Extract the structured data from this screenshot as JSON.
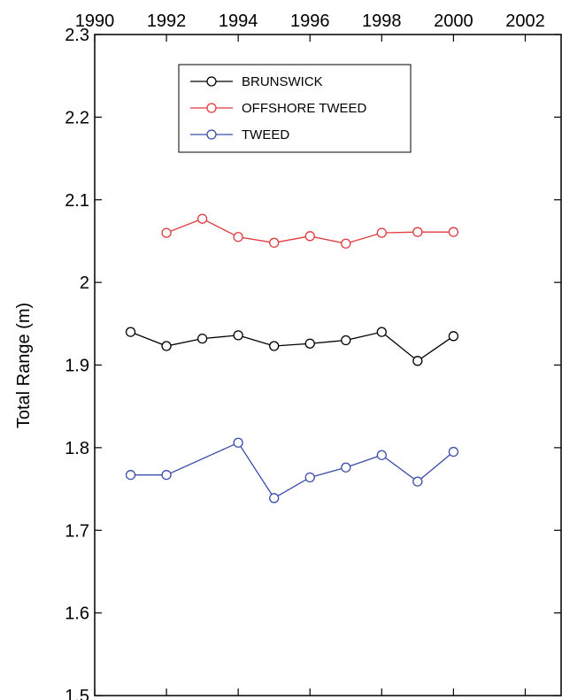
{
  "chart_data": {
    "type": "line",
    "title": "",
    "xlabel": "",
    "ylabel": "Total Range (m)",
    "xlim": [
      1990,
      2003
    ],
    "ylim": [
      1.5,
      2.3
    ],
    "x_ticks": [
      "1990",
      "1992",
      "1994",
      "1996",
      "1998",
      "2000",
      "2002"
    ],
    "y_ticks": [
      "1.5",
      "1.6",
      "1.7",
      "1.8",
      "1.9",
      "2",
      "2.1",
      "2.2",
      "2.3"
    ],
    "x_axis_position": "top",
    "grid": false,
    "legend_position": "top-left",
    "series": [
      {
        "name": "BRUNSWICK",
        "color": "#000000",
        "x": [
          1991,
          1992,
          1993,
          1994,
          1995,
          1996,
          1997,
          1998,
          1999,
          2000
        ],
        "y": [
          1.94,
          1.923,
          1.932,
          1.936,
          1.923,
          1.926,
          1.93,
          1.94,
          1.905,
          1.935
        ]
      },
      {
        "name": "OFFSHORE TWEED",
        "color": "#e0393e",
        "x": [
          1992,
          1993,
          1994,
          1995,
          1996,
          1997,
          1998,
          1999,
          2000
        ],
        "y": [
          2.06,
          2.077,
          2.055,
          2.048,
          2.056,
          2.047,
          2.06,
          2.061,
          2.061
        ]
      },
      {
        "name": "TWEED",
        "color": "#3b4ea8",
        "x": [
          1991,
          1992,
          1994,
          1995,
          1996,
          1997,
          1998,
          1999,
          2000
        ],
        "y": [
          1.767,
          1.767,
          1.806,
          1.739,
          1.764,
          1.776,
          1.791,
          1.759,
          1.795
        ]
      }
    ]
  }
}
